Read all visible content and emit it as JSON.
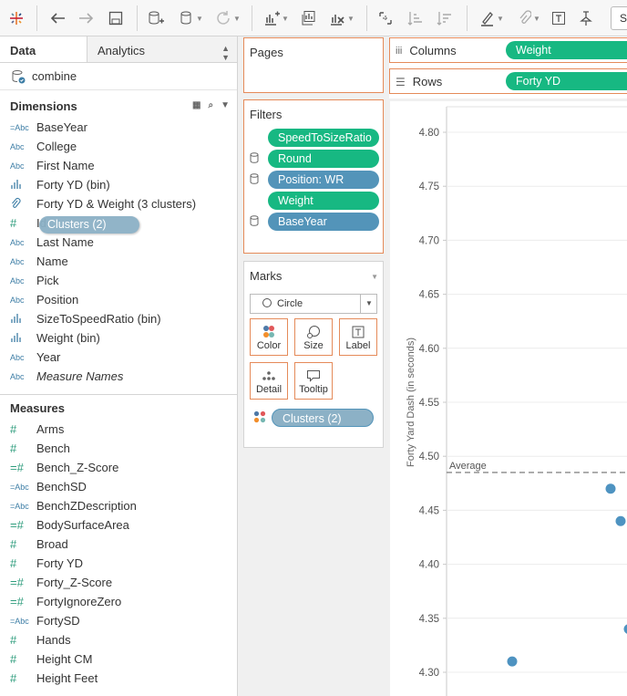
{
  "colors": {
    "green_pill": "#17b882",
    "blue_pill": "#5394b9",
    "shelf_border": "#e58a59",
    "point": "#4e93c1",
    "cluster_drag_pill": "#8cb1c6"
  },
  "toolbar": {
    "icons": [
      "tableau-logo-icon",
      "undo-icon",
      "redo-icon",
      "save-icon",
      "new-datasource-icon",
      "pause-updates-icon",
      "refresh-icon",
      "new-worksheet-icon",
      "duplicate-icon",
      "clear-sheet-icon",
      "swap-icon",
      "sort-ascending-icon",
      "sort-descending-icon",
      "highlight-icon",
      "group-icon",
      "show-labels-icon",
      "fix-axes-icon"
    ],
    "show_me_letter": "S"
  },
  "left_pane": {
    "tab_data": "Data",
    "tab_analytics": "Analytics",
    "datasource": "combine",
    "dimensions_header": "Dimensions",
    "dimensions": [
      {
        "icon": "=Abc",
        "label": "BaseYear"
      },
      {
        "icon": "Abc",
        "label": "College"
      },
      {
        "icon": "Abc",
        "label": "First Name"
      },
      {
        "icon": "bar-bin-icon",
        "label": "Forty YD (bin)"
      },
      {
        "icon": "paperclip-icon",
        "label": "Forty YD & Weight (3 clusters)"
      },
      {
        "icon": "#",
        "label": "Id"
      },
      {
        "icon": "Abc",
        "label": "Last Name"
      },
      {
        "icon": "Abc",
        "label": "Name"
      },
      {
        "icon": "Abc",
        "label": "Pick"
      },
      {
        "icon": "Abc",
        "label": "Position"
      },
      {
        "icon": "bar-bin-icon",
        "label": "SizeToSpeedRatio (bin)"
      },
      {
        "icon": "bar-bin-icon",
        "label": "Weight (bin)"
      },
      {
        "icon": "Abc",
        "label": "Year"
      },
      {
        "icon": "Abc",
        "label": "Measure Names"
      }
    ],
    "measures_header": "Measures",
    "measures": [
      {
        "icon": "#",
        "label": "Arms"
      },
      {
        "icon": "#",
        "label": "Bench"
      },
      {
        "icon": "=#",
        "label": "Bench_Z-Score"
      },
      {
        "icon": "=Abc",
        "label": "BenchSD"
      },
      {
        "icon": "=Abc",
        "label": "BenchZDescription"
      },
      {
        "icon": "=#",
        "label": "BodySurfaceArea"
      },
      {
        "icon": "#",
        "label": "Broad"
      },
      {
        "icon": "#",
        "label": "Forty YD"
      },
      {
        "icon": "=#",
        "label": "Forty_Z-Score"
      },
      {
        "icon": "=#",
        "label": "FortyIgnoreZero"
      },
      {
        "icon": "=Abc",
        "label": "FortySD"
      },
      {
        "icon": "#",
        "label": "Hands"
      },
      {
        "icon": "#",
        "label": "Height CM"
      },
      {
        "icon": "#",
        "label": "Height Feet"
      }
    ],
    "drag_pill": "Clusters (2)"
  },
  "pages_card": {
    "title": "Pages"
  },
  "filters_card": {
    "title": "Filters",
    "items": [
      {
        "label": "SpeedToSizeRatio",
        "color": "green",
        "db": false
      },
      {
        "label": "Round",
        "color": "green",
        "db": true
      },
      {
        "label": "Position: WR",
        "color": "blue",
        "db": true
      },
      {
        "label": "Weight",
        "color": "green",
        "db": false
      },
      {
        "label": "BaseYear",
        "color": "blue",
        "db": true
      }
    ]
  },
  "marks_card": {
    "title": "Marks",
    "mark_type": "Circle",
    "buttons": [
      "Color",
      "Size",
      "Label",
      "Detail",
      "Tooltip"
    ],
    "color_pill": "Clusters (2)"
  },
  "shelves": {
    "columns_label": "Columns",
    "columns_pill": "Weight",
    "rows_label": "Rows",
    "rows_pill": "Forty YD"
  },
  "chart_data": {
    "type": "scatter",
    "ylabel": "Forty Yard Dash (in seconds)",
    "ylim": [
      4.29,
      4.82
    ],
    "yticks": [
      "4.80",
      "4.75",
      "4.70",
      "4.65",
      "4.60",
      "4.55",
      "4.50",
      "4.45",
      "4.40",
      "4.35",
      "4.30"
    ],
    "reference_line": {
      "label": "Average",
      "value": 4.485
    },
    "points_y": [
      4.47,
      4.44,
      4.34,
      4.31
    ]
  }
}
